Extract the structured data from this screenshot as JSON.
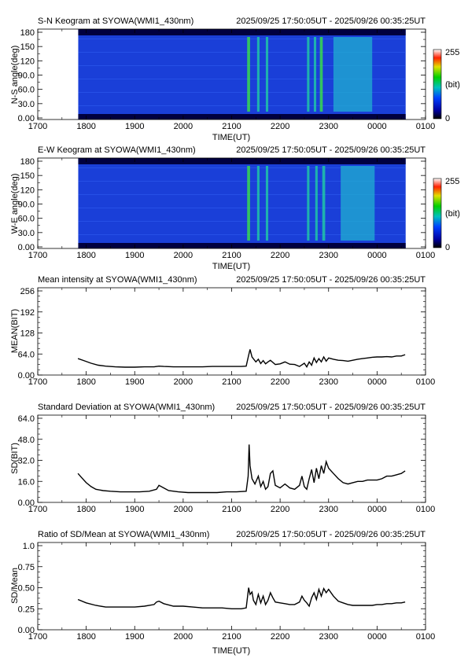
{
  "figure": {
    "time_range": "2025/09/25 17:50:05UT - 2025/09/26 00:35:25UT"
  },
  "x_ticks": [
    "1700",
    "1800",
    "1900",
    "2000",
    "2100",
    "2200",
    "2300",
    "0000",
    "0100"
  ],
  "x_label": "TIME(UT)",
  "colors": {
    "line": "#000000",
    "axis": "#000000",
    "keogram_base": "#1a3fd8",
    "keogram_dark": "#000040"
  },
  "chart_data": [
    {
      "type": "heatmap",
      "title": "S-N Keogram at SYOWA(WMI1_430nm)",
      "xlabel": "TIME(UT)",
      "ylabel": "N-S angle(deg)",
      "yticks": [
        "0.00",
        "30.0",
        "60.0",
        "90.0",
        "120",
        "150",
        "180"
      ],
      "ylim": [
        0,
        180
      ],
      "x_start_hours": 17.835,
      "x_end_hours": 24.59,
      "colorbar": {
        "min_label": "0",
        "max_label": "255",
        "unit_label": "(bit)"
      },
      "bright_bands": [
        {
          "x": 21.35,
          "width": 0.06,
          "level": 0.75
        },
        {
          "x": 21.55,
          "width": 0.05,
          "level": 0.55
        },
        {
          "x": 21.73,
          "width": 0.05,
          "level": 0.5
        },
        {
          "x": 22.58,
          "width": 0.05,
          "level": 0.55
        },
        {
          "x": 22.72,
          "width": 0.05,
          "level": 0.5
        },
        {
          "x": 22.85,
          "width": 0.06,
          "level": 0.65
        },
        {
          "x": 23.5,
          "width": 0.8,
          "level": 0.35
        }
      ]
    },
    {
      "type": "heatmap",
      "title": "E-W Keogram at SYOWA(WMI1_430nm)",
      "xlabel": "TIME(UT)",
      "ylabel": "W-E angle(deg)",
      "yticks": [
        "0.00",
        "30.0",
        "60.0",
        "90.0",
        "120",
        "150",
        "180"
      ],
      "ylim": [
        0,
        180
      ],
      "x_start_hours": 17.835,
      "x_end_hours": 24.59,
      "colorbar": {
        "min_label": "0",
        "max_label": "255",
        "unit_label": "(bit)"
      },
      "bright_bands": [
        {
          "x": 21.35,
          "width": 0.06,
          "level": 0.8
        },
        {
          "x": 21.55,
          "width": 0.05,
          "level": 0.5
        },
        {
          "x": 21.73,
          "width": 0.05,
          "level": 0.5
        },
        {
          "x": 22.58,
          "width": 0.05,
          "level": 0.55
        },
        {
          "x": 22.75,
          "width": 0.05,
          "level": 0.5
        },
        {
          "x": 22.9,
          "width": 0.06,
          "level": 0.6
        },
        {
          "x": 23.6,
          "width": 0.7,
          "level": 0.4
        }
      ]
    },
    {
      "type": "line",
      "title": "Mean intensity at SYOWA(WMI1_430nm)",
      "xlabel": "TIME(UT)",
      "ylabel": "MEAN(BIT)",
      "yticks": [
        "0.00",
        "64.0",
        "128",
        "192",
        "256"
      ],
      "ylim": [
        0,
        256
      ],
      "series": [
        {
          "x": [
            17.83,
            17.95,
            18.1,
            18.25,
            18.4,
            18.6,
            18.8,
            19.0,
            19.2,
            19.4,
            19.5,
            19.6,
            19.8,
            20.0,
            20.2,
            20.4,
            20.6,
            20.8,
            21.0,
            21.2,
            21.3,
            21.35,
            21.38,
            21.42,
            21.5,
            21.55,
            21.6,
            21.65,
            21.7,
            21.75,
            21.8,
            21.9,
            22.0,
            22.1,
            22.2,
            22.3,
            22.4,
            22.5,
            22.55,
            22.6,
            22.65,
            22.7,
            22.75,
            22.8,
            22.85,
            22.9,
            22.95,
            23.0,
            23.1,
            23.2,
            23.3,
            23.4,
            23.5,
            23.6,
            23.7,
            23.8,
            23.9,
            24.0,
            24.1,
            24.2,
            24.3,
            24.4,
            24.5,
            24.58
          ],
          "y": [
            50,
            44,
            36,
            30,
            27,
            25,
            24,
            24,
            25,
            25,
            27,
            26,
            25,
            25,
            25,
            25,
            26,
            26,
            26,
            26,
            27,
            60,
            78,
            55,
            40,
            48,
            35,
            44,
            34,
            40,
            45,
            32,
            34,
            40,
            33,
            32,
            26,
            36,
            25,
            40,
            30,
            52,
            38,
            50,
            40,
            55,
            42,
            52,
            48,
            45,
            44,
            42,
            45,
            48,
            50,
            52,
            54,
            55,
            55,
            56,
            55,
            58,
            58,
            62
          ]
        }
      ]
    },
    {
      "type": "line",
      "title": "Standard Deviation at SYOWA(WMI1_430nm)",
      "xlabel": "TIME(UT)",
      "ylabel": "SD(BIT)",
      "yticks": [
        "0.00",
        "16.0",
        "32.0",
        "48.0",
        "64.0"
      ],
      "ylim": [
        0,
        64
      ],
      "series": [
        {
          "x": [
            17.83,
            17.9,
            18.0,
            18.1,
            18.2,
            18.35,
            18.5,
            18.7,
            18.9,
            19.1,
            19.3,
            19.45,
            19.5,
            19.6,
            19.7,
            19.9,
            20.1,
            20.3,
            20.5,
            20.7,
            20.9,
            21.1,
            21.3,
            21.34,
            21.36,
            21.38,
            21.42,
            21.48,
            21.55,
            21.6,
            21.65,
            21.7,
            21.75,
            21.8,
            21.85,
            21.9,
            22.0,
            22.1,
            22.2,
            22.3,
            22.4,
            22.45,
            22.5,
            22.55,
            22.6,
            22.65,
            22.7,
            22.75,
            22.8,
            22.85,
            22.9,
            22.95,
            23.0,
            23.1,
            23.2,
            23.3,
            23.4,
            23.5,
            23.6,
            23.7,
            23.8,
            23.9,
            24.0,
            24.1,
            24.2,
            24.3,
            24.4,
            24.5,
            24.58
          ],
          "y": [
            22,
            19,
            15,
            12,
            10,
            9,
            8.5,
            8,
            8,
            8,
            8.5,
            10,
            13,
            11,
            9,
            8,
            7.5,
            7.5,
            7.5,
            7.5,
            8,
            8,
            8.5,
            20,
            44,
            28,
            18,
            14,
            20,
            12,
            16,
            10,
            12,
            22,
            24,
            13,
            11,
            14,
            11,
            10,
            13,
            20,
            12,
            10,
            18,
            25,
            15,
            26,
            18,
            28,
            22,
            31,
            26,
            22,
            18,
            15,
            14,
            15,
            16,
            16,
            17,
            17,
            17,
            18,
            20,
            20,
            21,
            22,
            24
          ]
        }
      ]
    },
    {
      "type": "line",
      "title": "Ratio of SD/Mean at SYOWA(WMI1_430nm)",
      "xlabel": "TIME(UT)",
      "ylabel": "SD/Mean",
      "yticks": [
        "0.00",
        "0.25",
        "0.50",
        "0.75",
        "1.0"
      ],
      "ylim": [
        0,
        1.0
      ],
      "series": [
        {
          "x": [
            17.83,
            18.0,
            18.2,
            18.4,
            18.6,
            18.8,
            19.0,
            19.2,
            19.4,
            19.45,
            19.5,
            19.6,
            19.8,
            20.0,
            20.2,
            20.4,
            20.6,
            20.8,
            21.0,
            21.2,
            21.3,
            21.35,
            21.38,
            21.42,
            21.45,
            21.5,
            21.55,
            21.6,
            21.65,
            21.7,
            21.75,
            21.8,
            21.85,
            21.9,
            22.0,
            22.1,
            22.2,
            22.3,
            22.4,
            22.45,
            22.5,
            22.55,
            22.6,
            22.65,
            22.7,
            22.75,
            22.8,
            22.85,
            22.9,
            22.95,
            23.0,
            23.1,
            23.2,
            23.3,
            23.4,
            23.5,
            23.6,
            23.7,
            23.8,
            23.9,
            24.0,
            24.1,
            24.2,
            24.3,
            24.4,
            24.5,
            24.58
          ],
          "y": [
            0.36,
            0.32,
            0.29,
            0.27,
            0.27,
            0.27,
            0.27,
            0.28,
            0.3,
            0.33,
            0.34,
            0.31,
            0.28,
            0.28,
            0.27,
            0.26,
            0.26,
            0.26,
            0.25,
            0.25,
            0.26,
            0.5,
            0.42,
            0.45,
            0.35,
            0.3,
            0.42,
            0.32,
            0.4,
            0.3,
            0.35,
            0.44,
            0.38,
            0.33,
            0.32,
            0.31,
            0.3,
            0.3,
            0.33,
            0.4,
            0.35,
            0.32,
            0.28,
            0.38,
            0.44,
            0.36,
            0.48,
            0.4,
            0.49,
            0.44,
            0.48,
            0.4,
            0.34,
            0.32,
            0.3,
            0.29,
            0.29,
            0.29,
            0.29,
            0.29,
            0.3,
            0.3,
            0.31,
            0.31,
            0.32,
            0.32,
            0.33
          ]
        }
      ]
    }
  ]
}
